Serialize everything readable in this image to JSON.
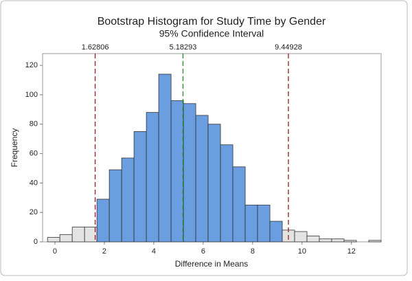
{
  "chart_data": {
    "type": "histogram",
    "title": "Bootstrap Histogram for Study Time by Gender",
    "subtitle": "95% Confidence Interval",
    "xlabel": "Difference in Means",
    "ylabel": "Frequency",
    "bins": [
      -0.3,
      0.2,
      0.7,
      1.2,
      1.7,
      2.2,
      2.7,
      3.2,
      3.7,
      4.2,
      4.7,
      5.2,
      5.7,
      6.2,
      6.7,
      7.2,
      7.7,
      8.2,
      8.7,
      9.2,
      9.7,
      10.2,
      10.7,
      11.2,
      11.7,
      12.2,
      12.7,
      13.2
    ],
    "values": [
      3,
      5,
      10,
      10,
      29,
      49,
      57,
      75,
      88,
      114,
      96,
      94,
      86,
      80,
      66,
      51,
      25,
      25,
      14,
      8,
      7,
      4,
      2,
      2,
      1,
      0,
      1
    ],
    "colors": [
      "#e3e3e3",
      "#e3e3e3",
      "#e3e3e3",
      "#e3e3e3",
      "#6a9ee0",
      "#6a9ee0",
      "#6a9ee0",
      "#6a9ee0",
      "#6a9ee0",
      "#6a9ee0",
      "#6a9ee0",
      "#6a9ee0",
      "#6a9ee0",
      "#6a9ee0",
      "#6a9ee0",
      "#6a9ee0",
      "#6a9ee0",
      "#6a9ee0",
      "#6a9ee0",
      "#e3e3e3",
      "#e3e3e3",
      "#e3e3e3",
      "#e3e3e3",
      "#e3e3e3",
      "#e3e3e3",
      "#e3e3e3",
      "#e3e3e3"
    ],
    "reference_lines": [
      {
        "value": 1.62806,
        "color": "#9b1c1c"
      },
      {
        "value": 5.18293,
        "color": "#1e8a1e"
      },
      {
        "value": 9.44928,
        "color": "#9b1c1c"
      }
    ],
    "xlim": [
      -0.5,
      13.2
    ],
    "xticks": [
      0,
      2,
      4,
      6,
      8,
      10,
      12
    ],
    "ylim": [
      0,
      128
    ],
    "yticks": [
      0,
      20,
      40,
      60,
      80,
      100,
      120
    ]
  }
}
